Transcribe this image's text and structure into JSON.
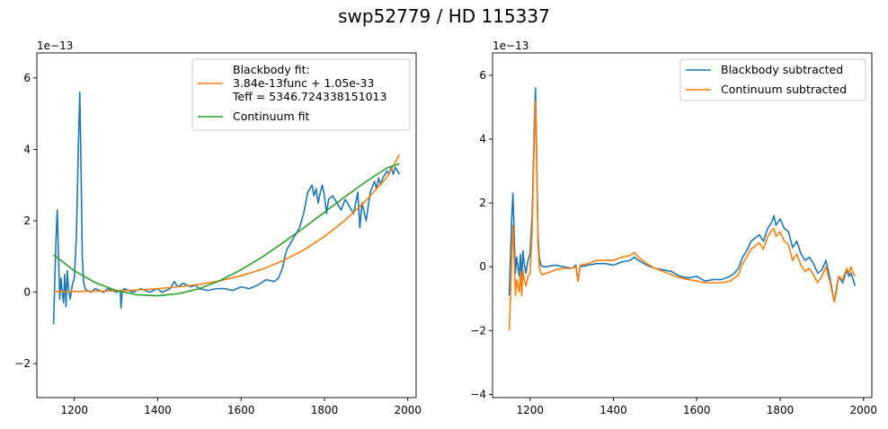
{
  "figure": {
    "title": "swp52779 / HD 115337"
  },
  "chart_data": [
    {
      "type": "line",
      "panel": "left",
      "title": "",
      "xlabel": "",
      "ylabel": "",
      "xlim": [
        1110,
        2020
      ],
      "ylim": [
        -2.95,
        6.7
      ],
      "xticks": [
        1200,
        1400,
        1600,
        1800,
        2000
      ],
      "yticks": [
        -2,
        0,
        2,
        4,
        6
      ],
      "y_offset_label": "1e−13",
      "legend_position": "upper right",
      "legend": [
        {
          "lines": [
            "Blackbody fit:",
            "3.84e-13func + 1.05e-33",
            "Teff = 5346.724338151013"
          ],
          "color": "#ff7f0e"
        },
        {
          "lines": [
            "Continuum fit"
          ],
          "color": "#2ca02c"
        }
      ],
      "series": [
        {
          "color": "#1f77b4",
          "x": [
            1150,
            1153,
            1156,
            1159,
            1162,
            1165,
            1168,
            1171,
            1174,
            1177,
            1180,
            1183,
            1186,
            1190,
            1195,
            1200,
            1205,
            1210,
            1213,
            1216,
            1219,
            1222,
            1226,
            1230,
            1240,
            1250,
            1260,
            1270,
            1280,
            1290,
            1300,
            1310,
            1312,
            1315,
            1320,
            1330,
            1340,
            1350,
            1360,
            1370,
            1380,
            1390,
            1400,
            1410,
            1420,
            1430,
            1440,
            1445,
            1450,
            1460,
            1470,
            1480,
            1490,
            1500,
            1520,
            1540,
            1560,
            1580,
            1600,
            1620,
            1640,
            1660,
            1680,
            1690,
            1700,
            1705,
            1710,
            1720,
            1730,
            1740,
            1745,
            1750,
            1755,
            1760,
            1770,
            1775,
            1780,
            1785,
            1790,
            1795,
            1800,
            1805,
            1810,
            1820,
            1830,
            1840,
            1850,
            1860,
            1870,
            1880,
            1885,
            1890,
            1900,
            1910,
            1920,
            1925,
            1930,
            1935,
            1940,
            1945,
            1950,
            1955,
            1960,
            1965,
            1970,
            1975,
            1980
          ],
          "y": [
            -0.9,
            0.3,
            1.5,
            2.3,
            1.0,
            -0.2,
            0.4,
            0.0,
            -0.3,
            0.5,
            -0.4,
            0.6,
            0.1,
            -0.2,
            0.2,
            0.4,
            1.6,
            4.3,
            5.6,
            3.5,
            1.0,
            0.3,
            0.1,
            0.05,
            0.0,
            0.1,
            0.05,
            0.0,
            0.1,
            0.05,
            0.0,
            0.05,
            -0.45,
            0.05,
            0.1,
            0.05,
            0.0,
            0.05,
            0.1,
            0.05,
            0.0,
            0.05,
            0.1,
            0.0,
            0.05,
            0.1,
            0.3,
            0.2,
            0.15,
            0.25,
            0.2,
            0.15,
            0.2,
            0.1,
            0.05,
            0.1,
            0.1,
            0.05,
            0.15,
            0.1,
            0.2,
            0.35,
            0.3,
            0.4,
            0.7,
            1.0,
            1.2,
            1.4,
            1.6,
            1.8,
            2.0,
            2.2,
            2.5,
            2.8,
            3.0,
            2.7,
            2.9,
            2.5,
            2.8,
            3.0,
            2.7,
            2.2,
            2.6,
            2.7,
            2.5,
            2.3,
            2.6,
            2.4,
            2.2,
            2.8,
            1.8,
            2.5,
            2.0,
            2.8,
            3.1,
            2.9,
            3.2,
            3.0,
            3.2,
            3.3,
            3.4,
            3.3,
            3.5,
            3.3,
            3.5,
            3.4,
            3.3
          ]
        },
        {
          "color": "#ff7f0e",
          "x": [
            1150,
            1200,
            1250,
            1300,
            1350,
            1400,
            1450,
            1500,
            1550,
            1600,
            1650,
            1700,
            1750,
            1800,
            1850,
            1900,
            1950,
            1980
          ],
          "y": [
            0.02,
            0.02,
            0.03,
            0.04,
            0.06,
            0.1,
            0.15,
            0.22,
            0.32,
            0.46,
            0.64,
            0.88,
            1.18,
            1.56,
            2.02,
            2.57,
            3.22,
            3.85
          ]
        },
        {
          "color": "#2ca02c",
          "x": [
            1150,
            1200,
            1250,
            1300,
            1350,
            1400,
            1450,
            1500,
            1550,
            1600,
            1650,
            1700,
            1750,
            1800,
            1850,
            1900,
            1950,
            1980
          ],
          "y": [
            1.05,
            0.6,
            0.27,
            0.05,
            -0.07,
            -0.1,
            -0.04,
            0.1,
            0.33,
            0.63,
            0.98,
            1.38,
            1.8,
            2.24,
            2.68,
            3.1,
            3.48,
            3.6
          ]
        }
      ]
    },
    {
      "type": "line",
      "panel": "right",
      "title": "",
      "xlabel": "",
      "ylabel": "",
      "xlim": [
        1110,
        2020
      ],
      "ylim": [
        -4.1,
        6.7
      ],
      "xticks": [
        1200,
        1400,
        1600,
        1800,
        2000
      ],
      "yticks": [
        -4,
        -2,
        0,
        2,
        4,
        6
      ],
      "y_offset_label": "1e−13",
      "legend_position": "upper right",
      "legend": [
        {
          "lines": [
            "Blackbody subtracted"
          ],
          "color": "#1f77b4"
        },
        {
          "lines": [
            "Continuum subtracted"
          ],
          "color": "#ff7f0e"
        }
      ],
      "series": [
        {
          "color": "#1f77b4",
          "x": [
            1150,
            1153,
            1156,
            1159,
            1162,
            1165,
            1168,
            1171,
            1174,
            1177,
            1180,
            1183,
            1186,
            1190,
            1195,
            1200,
            1205,
            1210,
            1213,
            1216,
            1219,
            1222,
            1226,
            1230,
            1240,
            1260,
            1280,
            1300,
            1310,
            1315,
            1320,
            1340,
            1360,
            1380,
            1400,
            1420,
            1440,
            1450,
            1460,
            1480,
            1500,
            1520,
            1540,
            1560,
            1580,
            1600,
            1620,
            1640,
            1660,
            1680,
            1690,
            1700,
            1710,
            1720,
            1730,
            1740,
            1750,
            1760,
            1770,
            1780,
            1785,
            1790,
            1800,
            1810,
            1820,
            1830,
            1840,
            1850,
            1860,
            1870,
            1880,
            1890,
            1900,
            1910,
            1920,
            1930,
            1935,
            1940,
            1950,
            1960,
            1965,
            1970,
            1975,
            1980
          ],
          "y": [
            -0.9,
            0.3,
            1.5,
            2.3,
            1.0,
            -0.2,
            0.3,
            0.0,
            -0.3,
            0.4,
            -0.4,
            0.5,
            0.1,
            -0.2,
            0.2,
            0.4,
            1.6,
            4.3,
            5.6,
            3.5,
            1.0,
            0.3,
            0.05,
            0.0,
            0.0,
            0.05,
            0.0,
            -0.05,
            0.05,
            -0.45,
            0.0,
            0.05,
            0.1,
            0.1,
            0.05,
            0.15,
            0.2,
            0.3,
            0.2,
            0.05,
            -0.05,
            -0.1,
            -0.15,
            -0.3,
            -0.35,
            -0.3,
            -0.45,
            -0.4,
            -0.4,
            -0.3,
            -0.2,
            -0.05,
            0.3,
            0.5,
            0.8,
            0.9,
            1.0,
            0.8,
            1.2,
            1.4,
            1.6,
            1.3,
            1.5,
            1.2,
            1.1,
            0.6,
            0.8,
            0.4,
            0.2,
            0.3,
            0.1,
            -0.2,
            -0.1,
            0.2,
            -0.4,
            -1.1,
            -0.7,
            -0.3,
            -0.5,
            -0.1,
            -0.3,
            -0.2,
            -0.4,
            -0.6
          ]
        },
        {
          "color": "#ff7f0e",
          "x": [
            1150,
            1153,
            1156,
            1159,
            1162,
            1165,
            1168,
            1171,
            1174,
            1177,
            1180,
            1183,
            1186,
            1190,
            1195,
            1200,
            1205,
            1210,
            1213,
            1216,
            1219,
            1222,
            1226,
            1230,
            1240,
            1260,
            1280,
            1300,
            1310,
            1315,
            1320,
            1340,
            1360,
            1380,
            1400,
            1420,
            1440,
            1450,
            1460,
            1480,
            1500,
            1520,
            1540,
            1560,
            1580,
            1600,
            1620,
            1640,
            1660,
            1680,
            1690,
            1700,
            1710,
            1720,
            1730,
            1740,
            1750,
            1760,
            1770,
            1780,
            1785,
            1790,
            1800,
            1810,
            1820,
            1830,
            1840,
            1850,
            1860,
            1870,
            1880,
            1890,
            1900,
            1910,
            1920,
            1930,
            1935,
            1940,
            1950,
            1960,
            1965,
            1970,
            1975,
            1980
          ],
          "y": [
            -2.0,
            -1.0,
            0.3,
            1.3,
            0.2,
            -0.9,
            -0.4,
            -0.6,
            -0.8,
            -0.2,
            -0.9,
            -0.1,
            -0.4,
            -0.6,
            -0.3,
            -0.2,
            1.1,
            3.9,
            5.2,
            3.2,
            0.7,
            0.0,
            -0.2,
            -0.25,
            -0.2,
            -0.1,
            -0.05,
            -0.05,
            0.0,
            -0.45,
            0.05,
            0.1,
            0.2,
            0.2,
            0.2,
            0.3,
            0.35,
            0.45,
            0.3,
            0.1,
            -0.05,
            -0.15,
            -0.25,
            -0.35,
            -0.4,
            -0.45,
            -0.5,
            -0.5,
            -0.5,
            -0.45,
            -0.35,
            -0.25,
            0.1,
            0.3,
            0.55,
            0.65,
            0.75,
            0.55,
            0.95,
            1.15,
            1.2,
            0.95,
            1.1,
            0.8,
            0.7,
            0.2,
            0.4,
            0.05,
            -0.15,
            -0.05,
            -0.25,
            -0.5,
            -0.3,
            0.0,
            -0.5,
            -1.1,
            -0.8,
            -0.3,
            -0.4,
            -0.05,
            -0.2,
            0.0,
            -0.2,
            -0.3
          ]
        }
      ]
    }
  ]
}
